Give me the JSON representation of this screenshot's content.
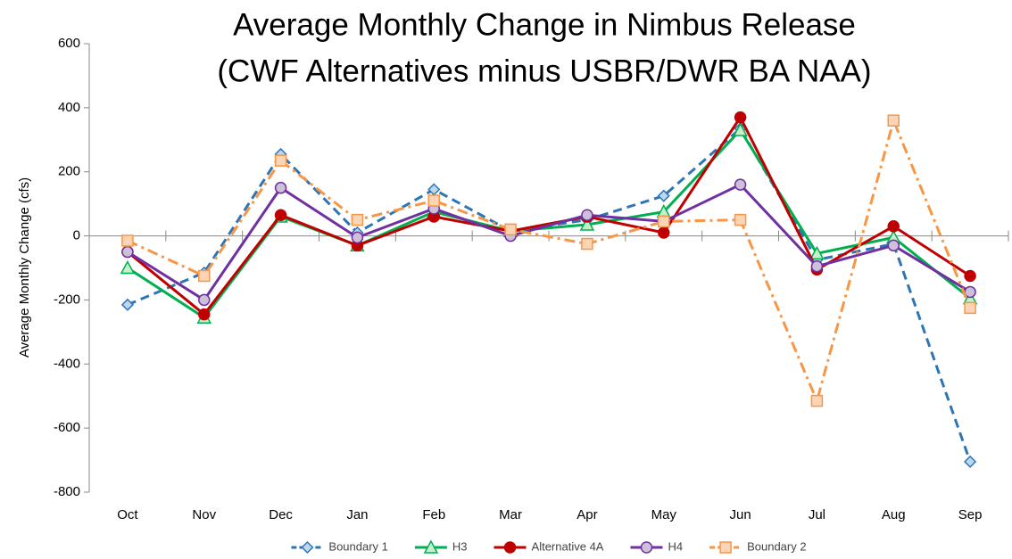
{
  "chart_data": {
    "type": "line",
    "title": "Average Monthly Change in Nimbus Release",
    "subtitle": "(CWF Alternatives minus USBR/DWR BA NAA)",
    "y_label": "Average Monthly Change (cfs)",
    "categories": [
      "Oct",
      "Nov",
      "Dec",
      "Jan",
      "Feb",
      "Mar",
      "Apr",
      "May",
      "Jun",
      "Jul",
      "Aug",
      "Sep"
    ],
    "ylim": [
      -800,
      600
    ],
    "yticks": [
      -800,
      -600,
      -400,
      -200,
      0,
      200,
      400,
      600
    ],
    "grid": false,
    "legend": "bottom",
    "series": [
      {
        "name": "Boundary 1",
        "color": "#2e75b6",
        "marker": "diamond",
        "marker_fill": "#bdd7ee",
        "dash": "dashed",
        "values": [
          -215,
          -115,
          255,
          10,
          145,
          15,
          50,
          125,
          335,
          -75,
          -25,
          -705
        ]
      },
      {
        "name": "H3",
        "color": "#00b050",
        "marker": "triangle",
        "marker_fill": "#c6efce",
        "dash": "solid",
        "values": [
          -100,
          -255,
          60,
          -30,
          75,
          15,
          35,
          75,
          330,
          -55,
          -5,
          -195
        ]
      },
      {
        "name": "Alternative 4A",
        "color": "#c00000",
        "marker": "circle",
        "marker_fill": "#c00000",
        "dash": "solid",
        "values": [
          -50,
          -245,
          65,
          -30,
          60,
          15,
          60,
          10,
          370,
          -105,
          30,
          -125
        ]
      },
      {
        "name": "H4",
        "color": "#7030a0",
        "marker": "circle",
        "marker_fill": "#ccc0da",
        "dash": "solid",
        "values": [
          -50,
          -200,
          150,
          -5,
          85,
          0,
          65,
          45,
          160,
          -95,
          -30,
          -175
        ]
      },
      {
        "name": "Boundary 2",
        "color": "#f79646",
        "marker": "square",
        "marker_fill": "#fbd5b5",
        "dash": "dashdot",
        "values": [
          -15,
          -125,
          235,
          50,
          110,
          20,
          -25,
          45,
          50,
          -515,
          360,
          -225
        ]
      }
    ]
  }
}
